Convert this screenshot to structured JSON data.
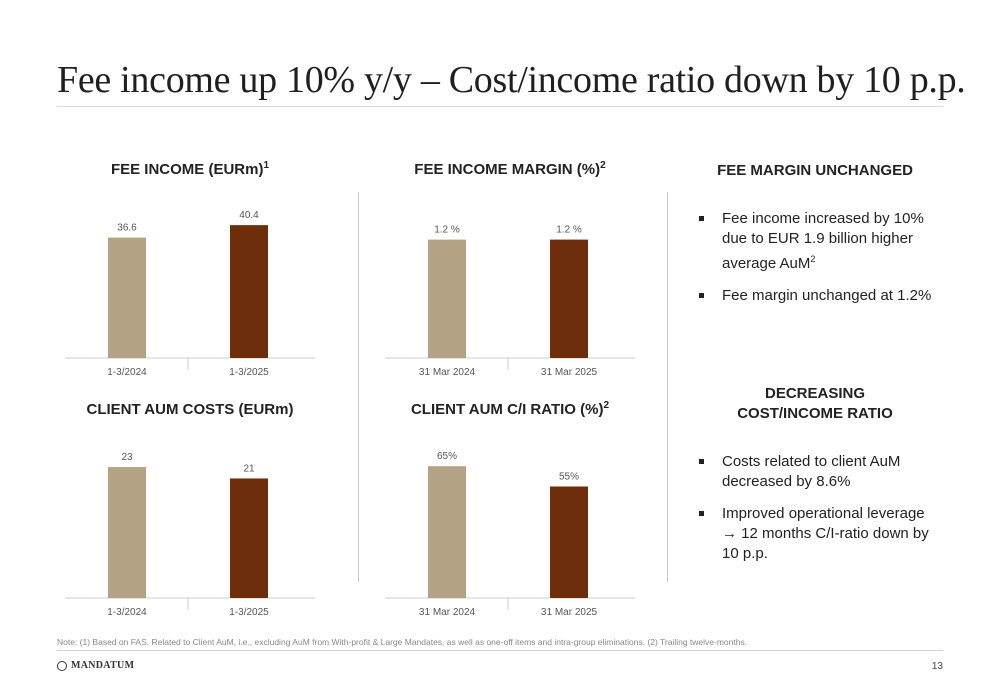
{
  "title": "Fee income up 10% y/y – Cost/income ratio down by 10 p.p.",
  "chart_data": [
    {
      "id": "fee-income",
      "type": "bar",
      "title": "FEE INCOME (EURm)",
      "title_sup": "1",
      "categories": [
        "1-3/2024",
        "1-3/2025"
      ],
      "values": [
        36.6,
        40.4
      ],
      "labels": [
        "36.6",
        "40.4"
      ],
      "colors": [
        "#B3A283",
        "#6E2E0C"
      ],
      "ylim": [
        0,
        45
      ]
    },
    {
      "id": "fee-margin",
      "type": "bar",
      "title": "FEE INCOME MARGIN (%)",
      "title_sup": "2",
      "categories": [
        "31 Mar 2024",
        "31 Mar 2025"
      ],
      "values": [
        1.2,
        1.2
      ],
      "labels": [
        "1.2 %",
        "1.2 %"
      ],
      "colors": [
        "#B3A283",
        "#6E2E0C"
      ],
      "ylim": [
        0,
        1.5
      ]
    },
    {
      "id": "aum-costs",
      "type": "bar",
      "title": "CLIENT AUM COSTS (EURm)",
      "title_sup": "",
      "categories": [
        "1-3/2024",
        "1-3/2025"
      ],
      "values": [
        23,
        21
      ],
      "labels": [
        "23",
        "21"
      ],
      "colors": [
        "#B3A283",
        "#6E2E0C"
      ],
      "ylim": [
        0,
        26
      ]
    },
    {
      "id": "aum-ci",
      "type": "bar",
      "title": "CLIENT AUM C/I RATIO (%)",
      "title_sup": "2",
      "categories": [
        "31 Mar 2024",
        "31 Mar 2025"
      ],
      "values": [
        65,
        55
      ],
      "labels": [
        "65%",
        "55%"
      ],
      "colors": [
        "#B3A283",
        "#6E2E0C"
      ],
      "ylim": [
        0,
        73
      ]
    }
  ],
  "side": {
    "section1": {
      "heading": "FEE MARGIN UNCHANGED",
      "bullet1": "Fee income increased by 10% due to EUR 1.9 billion higher average AuM",
      "bullet1_sup": "2",
      "bullet2": "Fee margin unchanged at 1.2%"
    },
    "section2": {
      "heading_line1": "DECREASING",
      "heading_line2": "COST/INCOME RATIO",
      "bullet1": "Costs related to client AuM decreased by 8.6%",
      "bullet2": "Improved operational leverage → 12 months C/I-ratio down by 10 p.p."
    }
  },
  "note": "Note: (1) Based on FAS. Related to Client AuM, i.e., excluding AuM from With-profit & Large Mandates, as well as one-off items and intra-group eliminations. (2) Trailing twelve-months.",
  "footer": {
    "logo_text": "MANDATUM",
    "page_number": "13"
  }
}
